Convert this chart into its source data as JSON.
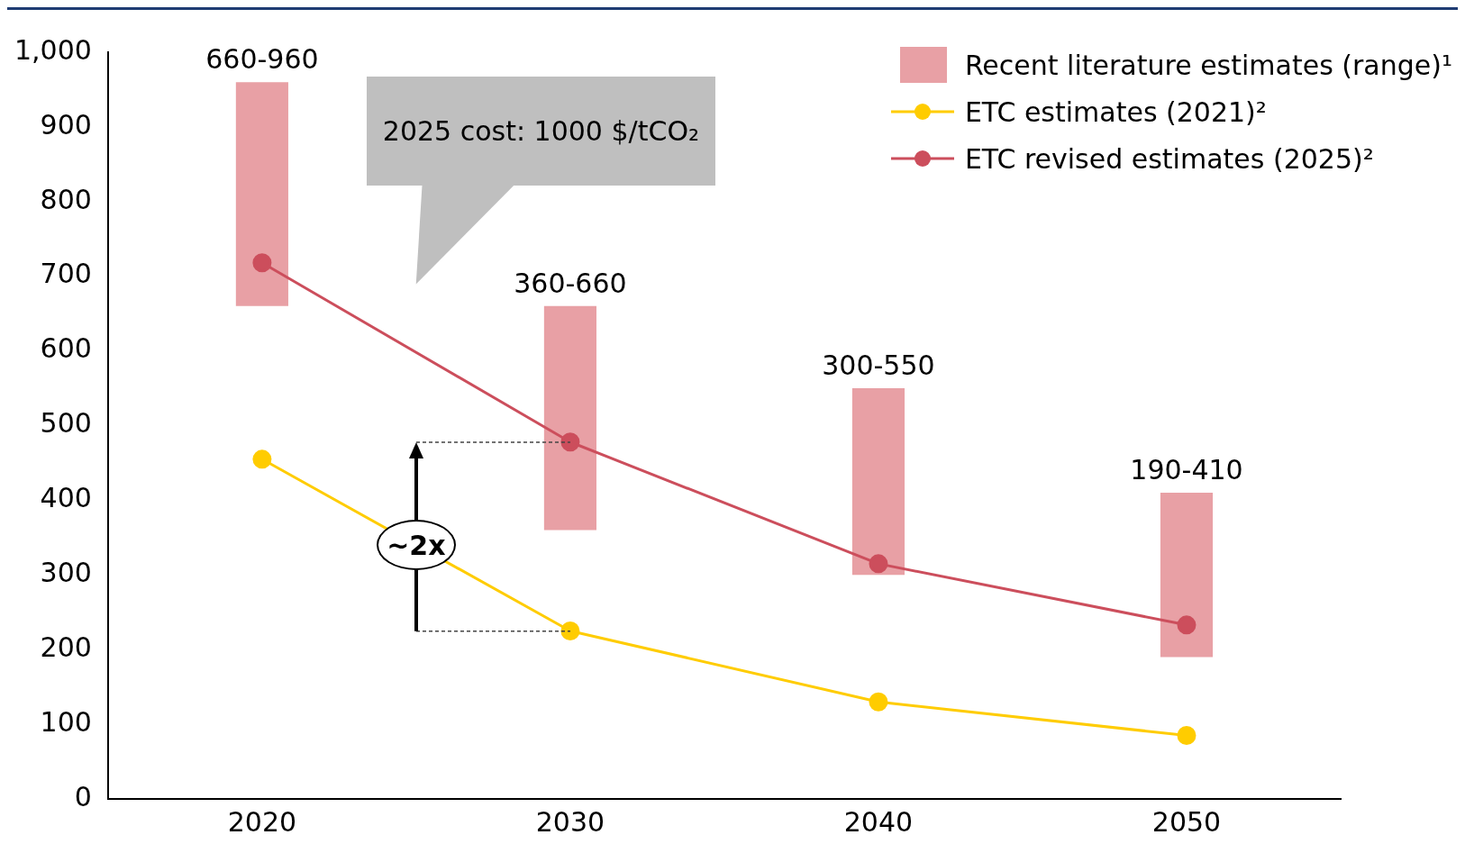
{
  "chart_data": {
    "type": "line",
    "categories": [
      "2020",
      "2030",
      "2040",
      "2050"
    ],
    "series": [
      {
        "name": "Recent literature estimates (range)¹",
        "type": "bar",
        "color": "#e8a0a5",
        "values": [
          300,
          300,
          250,
          220
        ],
        "base": [
          660,
          360,
          300,
          190
        ],
        "value_labels": [
          "660-960",
          "360-660",
          "300-550",
          "190-410"
        ]
      },
      {
        "name": "ETC estimates (2021)²",
        "color": "#ffcc00",
        "values": [
          455,
          225,
          130,
          85
        ]
      },
      {
        "name": "ETC revised estimates (2025)²",
        "color": "#cc4e5c",
        "values": [
          718,
          478,
          315,
          233
        ]
      }
    ],
    "ylim": [
      0,
      1000
    ],
    "yticks": [
      0,
      100,
      200,
      300,
      400,
      500,
      600,
      700,
      800,
      900,
      {
        "value": 1000,
        "label": "1,000"
      }
    ],
    "grid": false,
    "legend": "top right",
    "marker": "circle",
    "annotations": [
      "2025 cost: 1000 $/tCO₂",
      "~2x"
    ]
  }
}
